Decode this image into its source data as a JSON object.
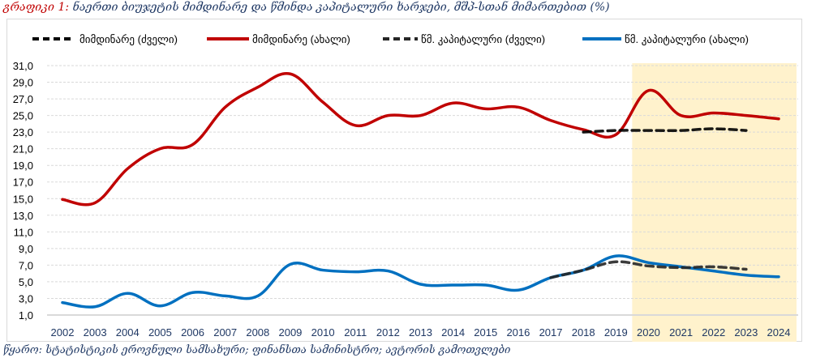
{
  "title": {
    "prefix": "გრაფიკი 1:",
    "text": " ნაერთი ბიუჯეტის მიმდინარე და წმინდა კაპიტალური ხარჯები, მშპ-სთან მიმართებით (%)"
  },
  "source": {
    "label": "წყარო:",
    "text": " სტატისტიკის ეროვნული სამსახური; ფინანსთა სამინისტრო; ავტორის გამოთვლები"
  },
  "colors": {
    "current_old": "#000000",
    "current_new": "#c00000",
    "capital_old": "#262626",
    "capital_new": "#0070c0",
    "forecast_band": "#fff2cc",
    "grid": "#d9d9d9",
    "tick_text": "#000000",
    "x_tick_text": "#1f3864"
  },
  "chart_data": {
    "type": "line",
    "title": "ნაერთი ბიუჯეტის მიმდინარე და წმინდა კაპიტალური ხარჯები, მშპ-სთან მიმართებით (%)",
    "xlabel": "",
    "ylabel": "",
    "x": [
      "2002",
      "2003",
      "2004",
      "2005",
      "2006",
      "2007",
      "2008",
      "2009",
      "2010",
      "2011",
      "2012",
      "2013",
      "2014",
      "2015",
      "2016",
      "2017",
      "2018",
      "2019",
      "2020",
      "2021",
      "2022",
      "2023",
      "2024"
    ],
    "ylim": [
      1,
      31
    ],
    "yticks": [
      "1,0",
      "3,0",
      "5,0",
      "7,0",
      "9,0",
      "11,0",
      "13,0",
      "15,0",
      "17,0",
      "19,0",
      "21,0",
      "23,0",
      "25,0",
      "27,0",
      "29,0",
      "31,0"
    ],
    "ytick_values": [
      1,
      3,
      5,
      7,
      9,
      11,
      13,
      15,
      17,
      19,
      21,
      23,
      25,
      27,
      29,
      31
    ],
    "grid": true,
    "legend_position": "top",
    "forecast_band": {
      "from": "2020",
      "to": "2024"
    },
    "series": [
      {
        "name": "მიმდინარე (ძველი)",
        "style": "dashed",
        "color_key": "current_old",
        "values": [
          null,
          null,
          null,
          null,
          null,
          null,
          null,
          null,
          null,
          null,
          null,
          null,
          null,
          null,
          null,
          null,
          23.0,
          23.2,
          23.2,
          23.2,
          23.4,
          23.2,
          null
        ]
      },
      {
        "name": "მიმდინარე (ახალი)",
        "style": "solid",
        "color_key": "current_new",
        "values": [
          14.9,
          14.5,
          18.6,
          21.0,
          21.5,
          26.0,
          28.4,
          30.0,
          26.6,
          23.8,
          25.0,
          25.0,
          26.5,
          25.8,
          26.0,
          24.4,
          23.3,
          22.7,
          28.0,
          25.0,
          25.3,
          25.0,
          24.6
        ]
      },
      {
        "name": "წმ. კაპიტალური (ძველი)",
        "style": "dashed",
        "color_key": "capital_old",
        "values": [
          null,
          null,
          null,
          null,
          null,
          null,
          null,
          null,
          null,
          null,
          null,
          null,
          null,
          null,
          null,
          5.5,
          6.4,
          7.4,
          6.9,
          6.7,
          6.8,
          6.5,
          null
        ]
      },
      {
        "name": "წმ. კაპიტალური (ახალი)",
        "style": "solid",
        "color_key": "capital_new",
        "values": [
          2.5,
          2.0,
          3.6,
          2.1,
          3.7,
          3.3,
          3.3,
          7.1,
          6.4,
          6.2,
          6.3,
          4.7,
          4.6,
          4.6,
          4.0,
          5.5,
          6.4,
          8.1,
          7.3,
          6.8,
          6.3,
          5.8,
          5.6
        ]
      }
    ]
  }
}
